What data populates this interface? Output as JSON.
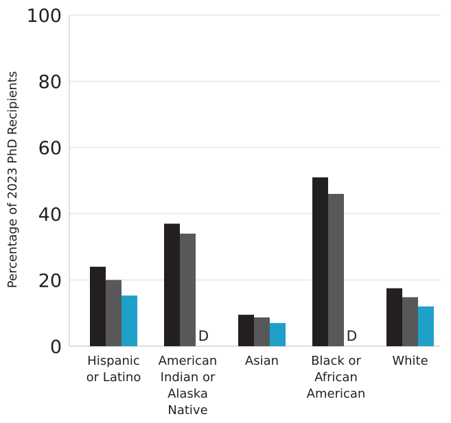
{
  "chart_data": {
    "type": "bar",
    "title": "",
    "xlabel": "",
    "ylabel": "Percentage of 2023 PhD Recipients",
    "ylim": [
      0,
      100
    ],
    "yticks": [
      0,
      20,
      40,
      60,
      80,
      100
    ],
    "grid": true,
    "categories": [
      [
        "Hispanic",
        "or Latino"
      ],
      [
        "American",
        "Indian or",
        "Alaska",
        "Native"
      ],
      [
        "Asian"
      ],
      [
        "Black or",
        "African",
        "American"
      ],
      [
        "White"
      ]
    ],
    "series": [
      {
        "color": "#231f20",
        "values": [
          24,
          37,
          9.5,
          51,
          17.5
        ]
      },
      {
        "color": "#58585a",
        "values": [
          20,
          34,
          8.7,
          46,
          14.8
        ]
      },
      {
        "color": "#1ea0c8",
        "values": [
          15.3,
          null,
          7,
          null,
          12
        ]
      }
    ],
    "suppressed_marker": "D"
  }
}
